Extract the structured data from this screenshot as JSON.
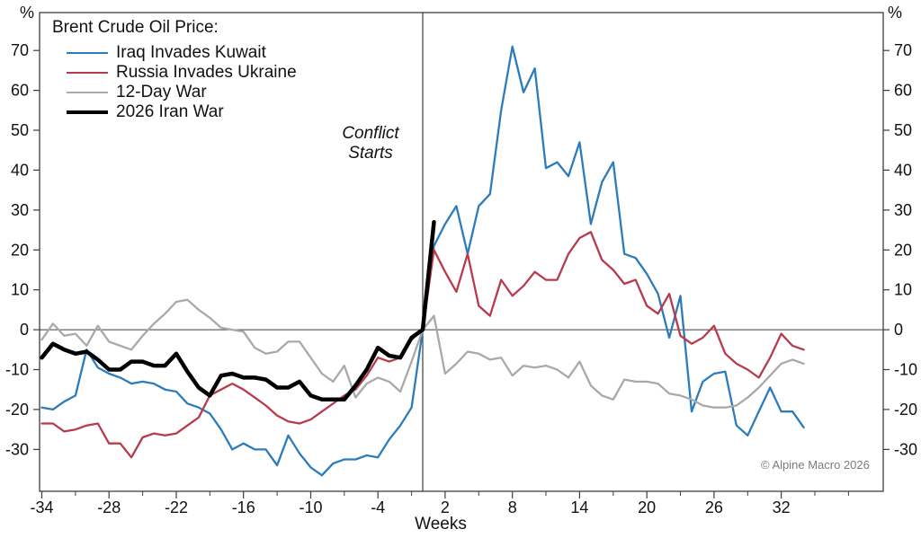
{
  "legend": {
    "title": "Brent Crude Oil Price:",
    "items": [
      {
        "label": "Iraq Invades Kuwait",
        "color": "#2c7bbb",
        "line_width": 2
      },
      {
        "label": "Russia Invades Ukraine",
        "color": "#b73b4b",
        "line_width": 2
      },
      {
        "label": "12-Day War",
        "color": "#a9a9a9",
        "line_width": 2
      },
      {
        "label": "2026 Iran War",
        "color": "#000000",
        "line_width": 4
      }
    ]
  },
  "annotations": {
    "conflict_line1": "Conflict",
    "conflict_line2": "Starts",
    "copyright": "© Alpine Macro 2026"
  },
  "chart_data": {
    "type": "line",
    "title": "Brent Crude Oil Price:",
    "xlabel": "Weeks",
    "left_axis_unit": "%",
    "right_axis_unit": "%",
    "xlim": [
      -34.2,
      41.1
    ],
    "ylim": [
      -40.5,
      79.5
    ],
    "x_major_ticks": [
      -34,
      -28,
      -22,
      -16,
      -10,
      -4,
      2,
      8,
      14,
      20,
      26,
      32
    ],
    "x_minor_ticks": [
      -31,
      -25,
      -19,
      -13,
      -7,
      -1,
      5,
      11,
      17,
      23,
      29,
      35,
      38
    ],
    "y_ticks": [
      -30,
      -20,
      -10,
      0,
      10,
      20,
      30,
      40,
      50,
      60,
      70
    ],
    "zero_line": true,
    "conflict_week": 0,
    "style": {
      "axis_color": "#3d3d3d",
      "grid": "off",
      "legend_position": "upper-left"
    },
    "series": [
      {
        "id": "iraq-invades-kuwait",
        "name": "Iraq Invades Kuwait",
        "color": "#2c7bbb",
        "line_width": 2.3,
        "x_start": -34,
        "x_step": 1,
        "values": [
          -19.5,
          -20,
          -18,
          -16.5,
          -5,
          -9.5,
          -11,
          -12,
          -13.5,
          -13,
          -13.5,
          -15,
          -15.5,
          -18.5,
          -19.5,
          -21,
          -25,
          -30,
          -28.5,
          -30,
          -30,
          -34,
          -26.5,
          -31,
          -34.5,
          -36.5,
          -33.5,
          -32.5,
          -32.5,
          -31.5,
          -32,
          -27.5,
          -24,
          -19.5,
          0,
          21,
          26.5,
          31,
          19,
          31,
          34,
          55,
          71,
          59.5,
          65.5,
          40.5,
          42,
          38.5,
          47,
          26.5,
          37,
          42,
          19,
          18,
          14,
          9,
          -2,
          8.5,
          -20.5,
          -13,
          -11,
          -10.5,
          -24,
          -26.5,
          -20.5,
          -14.5,
          -20.5,
          -20.5,
          -24.5
        ]
      },
      {
        "id": "russia-invades-ukraine",
        "name": "Russia Invades Ukraine",
        "color": "#b73b4b",
        "line_width": 2.3,
        "x_start": -34,
        "x_step": 1,
        "values": [
          -23.5,
          -23.5,
          -25.5,
          -25,
          -24,
          -23.5,
          -28.5,
          -28.5,
          -32,
          -27,
          -26,
          -26.5,
          -26,
          -24,
          -22,
          -16.5,
          -15,
          -13.5,
          -15,
          -17,
          -19,
          -21.5,
          -23,
          -23.5,
          -22.5,
          -20.5,
          -18.5,
          -16.5,
          -15,
          -11.5,
          -7,
          -8,
          -7,
          -2.5,
          0,
          20,
          14.5,
          9.5,
          19,
          6,
          3.5,
          12.5,
          8.5,
          11,
          14.5,
          12.5,
          12.5,
          19,
          23,
          24.5,
          17.5,
          15,
          11.5,
          12.5,
          6,
          4,
          9,
          -1.5,
          -3.5,
          -2,
          1,
          -6,
          -8.5,
          -10,
          -12,
          -7,
          -1,
          -4,
          -5
        ]
      },
      {
        "id": "twelve-day-war",
        "name": "12-Day War",
        "color": "#a9a9a9",
        "line_width": 2.3,
        "x_start": -34,
        "x_step": 1,
        "values": [
          -2.5,
          1.5,
          -1.5,
          -1,
          -4,
          1,
          -3,
          -4,
          -5,
          -1.5,
          1.5,
          4,
          7,
          7.5,
          5,
          3,
          0.5,
          0,
          -0.5,
          -4.5,
          -6,
          -5.5,
          -3,
          -3,
          -7,
          -11,
          -13,
          -9,
          -17,
          -13.5,
          -12,
          -13,
          -15.5,
          -8,
          0,
          3.5,
          -11,
          -8.5,
          -5.5,
          -6,
          -7.5,
          -7,
          -11.5,
          -9,
          -9.5,
          -9,
          -10,
          -12,
          -8,
          -14,
          -16.5,
          -17.5,
          -12.5,
          -13,
          -13,
          -13.5,
          -16,
          -16.5,
          -17.5,
          -19,
          -19.5,
          -19.5,
          -19,
          -17,
          -14.5,
          -11.5,
          -8.5,
          -7.5,
          -8.5
        ]
      },
      {
        "id": "iran-war-2026",
        "name": "2026 Iran War",
        "color": "#000000",
        "line_width": 4.5,
        "x_start": -34,
        "x_step": 1,
        "values": [
          -7,
          -3.5,
          -5,
          -6,
          -5.5,
          -7.5,
          -10,
          -10,
          -8,
          -8,
          -9,
          -9,
          -6,
          -10.5,
          -14.5,
          -16.5,
          -11.5,
          -11,
          -12,
          -12,
          -12.5,
          -14.5,
          -14.5,
          -13,
          -16.5,
          -17.5,
          -17.5,
          -17.5,
          -14,
          -10,
          -4.5,
          -6.5,
          -7,
          -2,
          0,
          27
        ]
      }
    ]
  }
}
